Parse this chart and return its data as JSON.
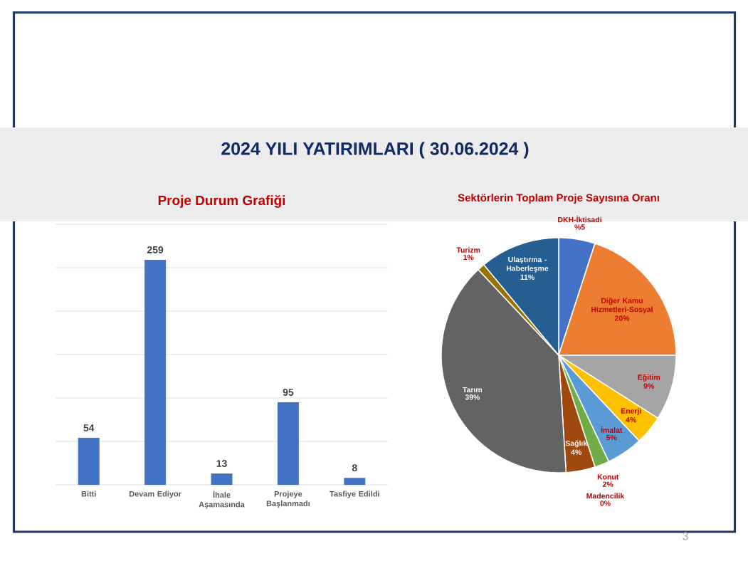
{
  "chart_data": [
    {
      "type": "other",
      "title": "2024 YILI YATIRIMLARI ( 30.06.2024 )",
      "annotations": [
        "3"
      ]
    },
    {
      "type": "bar",
      "title": "Proje Durum Grafiği",
      "categories": [
        "Bitti",
        "Devam Ediyor",
        "İhale Aşamasında",
        "Projeye Başlanmadı",
        "Tasfiye Edildi"
      ],
      "values": [
        54,
        259,
        13,
        95,
        8
      ],
      "color": "#4472c4",
      "ylim": [
        0,
        300
      ],
      "yticks": [
        {
          "value": 0,
          "label": null
        },
        {
          "value": 50,
          "label": null
        },
        {
          "value": 100,
          "label": null
        },
        {
          "value": 150,
          "label": null
        },
        {
          "value": 200,
          "label": null
        },
        {
          "value": 250,
          "label": null
        },
        {
          "value": 300,
          "label": null
        }
      ],
      "grid": "y",
      "tick_labels": "x",
      "data_labels": true
    },
    {
      "type": "pie",
      "title": "Sektörlerin Toplam Proje Sayısına Oranı",
      "categories": [
        "DKH-İktisadi",
        "Diğer Kamu Hizmetleri-Sosyal",
        "Eğitim",
        "Enerji",
        "İmalat",
        "Konut",
        "Madencilik",
        "Sağlık",
        "Tarım",
        "Turizm",
        "Ulaştırma - Haberleşme"
      ],
      "values": [
        5,
        20,
        9,
        4,
        5,
        2,
        0,
        4,
        39,
        1,
        11
      ],
      "colors": [
        "#4472c4",
        "#ed7d31",
        "#a5a5a5",
        "#ffc000",
        "#5b9bd5",
        "#70ad47",
        null,
        "#9e480e",
        "#636363",
        "#997300",
        "#255e91"
      ],
      "value_labels": [
        "%5",
        "20%",
        "9%",
        "4%",
        "5%",
        "2%",
        "0%",
        "4%",
        "39%",
        "1%",
        "11%"
      ]
    }
  ]
}
